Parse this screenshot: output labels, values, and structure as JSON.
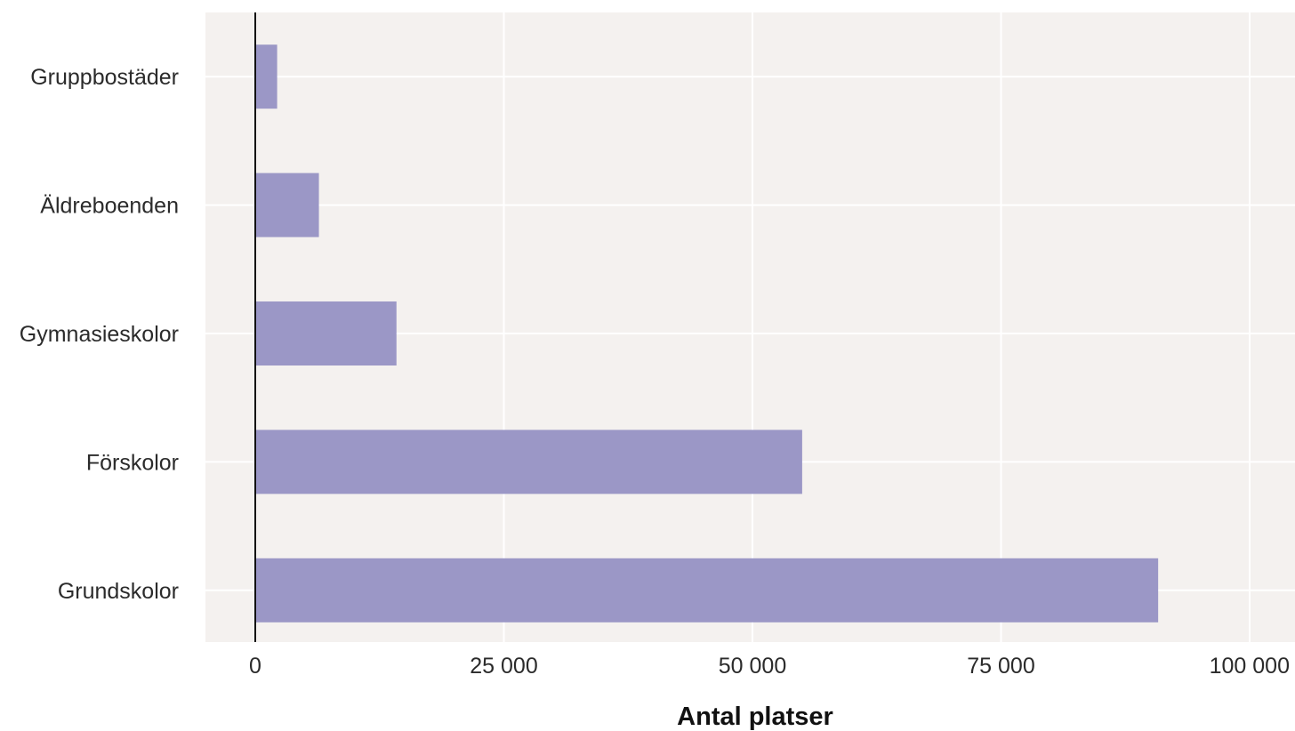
{
  "chart_data": {
    "type": "bar",
    "orientation": "horizontal",
    "categories": [
      "Gruppbostäder",
      "Äldreboenden",
      "Gymnasieskolor",
      "Förskolor",
      "Grundskolor"
    ],
    "values": [
      2200,
      6400,
      14200,
      55000,
      90800
    ],
    "xlabel": "Antal platser",
    "ylabel": "",
    "xlim": [
      -5000,
      104000
    ],
    "xticks": [
      0,
      25000,
      50000,
      75000,
      100000
    ],
    "xtick_labels": [
      "0",
      "25 000",
      "50 000",
      "75 000",
      "100 000"
    ],
    "grid": true,
    "colors": {
      "bar": "#9b97c6",
      "panel": "#f4f1ef",
      "gridline": "#ffffff",
      "zero_line": "#111111"
    }
  }
}
